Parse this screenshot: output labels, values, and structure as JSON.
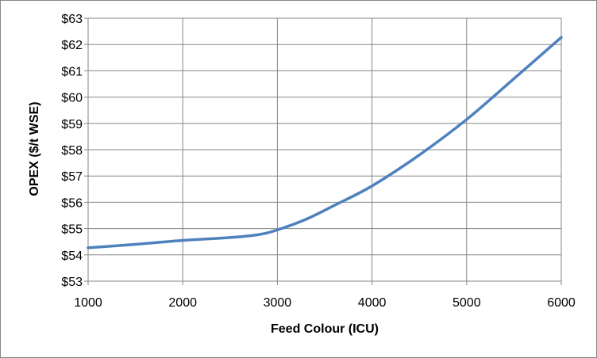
{
  "chart_data": {
    "type": "line",
    "title": "",
    "xlabel": "Feed Colour  (ICU)",
    "ylabel": "OPEX  ($/t WSE)",
    "xlim": [
      1000,
      6000
    ],
    "ylim": [
      53,
      63
    ],
    "x_ticks": [
      1000,
      2000,
      3000,
      4000,
      5000,
      6000
    ],
    "x_tick_labels": [
      "1000",
      "2000",
      "3000",
      "4000",
      "5000",
      "6000"
    ],
    "y_ticks": [
      53,
      54,
      55,
      56,
      57,
      58,
      59,
      60,
      61,
      62,
      63
    ],
    "y_tick_labels": [
      "$53",
      "$54",
      "$55",
      "$56",
      "$57",
      "$58",
      "$59",
      "$60",
      "$61",
      "$62",
      "$63"
    ],
    "grid": true,
    "legend": "none",
    "series": [
      {
        "color": "#4f81bd",
        "x": [
          1000,
          1500,
          2000,
          2500,
          2800,
          3000,
          3300,
          3600,
          4000,
          4500,
          5000,
          5500,
          6000
        ],
        "y": [
          54.27,
          54.4,
          54.55,
          54.66,
          54.77,
          54.95,
          55.35,
          55.88,
          56.62,
          57.8,
          59.15,
          60.7,
          62.27
        ]
      }
    ]
  }
}
